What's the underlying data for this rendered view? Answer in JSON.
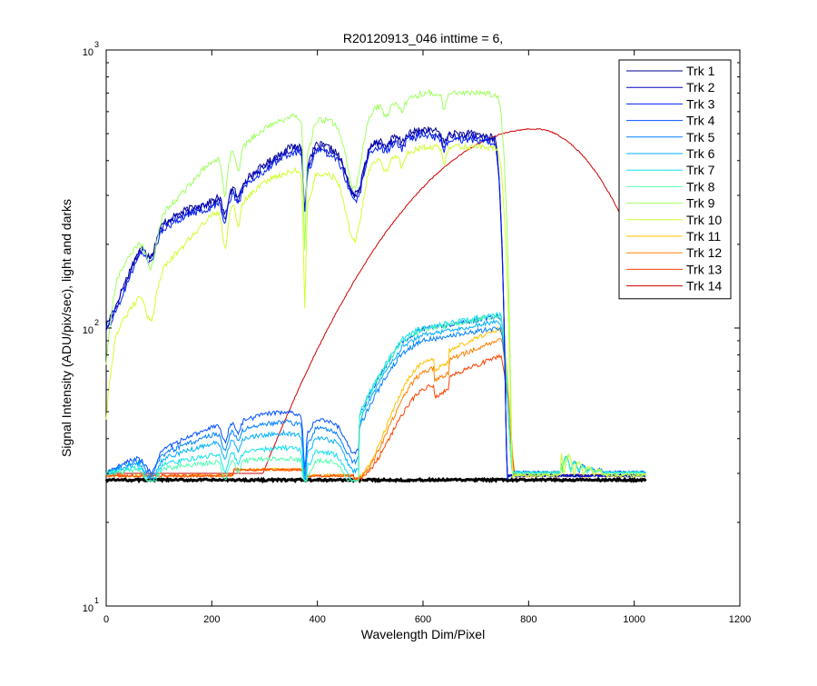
{
  "chart_data": {
    "type": "line",
    "title": "R20120913_046 inttime = 6,",
    "xlabel": "Wavelength Dim/Pixel",
    "ylabel": "Signal Intensity (ADU/pix/sec), light and darks",
    "xlim": [
      0,
      1200
    ],
    "ylim": [
      10,
      1000
    ],
    "yscale": "log",
    "grid": false,
    "legend_position": "top-right",
    "xticks": [
      0,
      200,
      400,
      600,
      800,
      1000,
      1200
    ],
    "xtick_labels": [
      "0",
      "200",
      "400",
      "600",
      "800",
      "1000",
      "1200"
    ],
    "yticks": [
      10,
      100,
      1000
    ],
    "ytick_labels": [
      {
        "base": "10",
        "exp": "1"
      },
      {
        "base": "10",
        "exp": "2"
      },
      {
        "base": "10",
        "exp": "3"
      }
    ],
    "series": [
      {
        "name": "Trk 1",
        "color": "#00008f",
        "shape": "blue",
        "params": {
          "scale": 1.02,
          "low": 90
        }
      },
      {
        "name": "Trk 2",
        "color": "#0000bf",
        "shape": "blue",
        "params": {
          "scale": 1.0,
          "low": 95
        }
      },
      {
        "name": "Trk 3",
        "color": "#0020ef",
        "shape": "blue",
        "params": {
          "scale": 0.97,
          "low": 100
        }
      },
      {
        "name": "Trk 4",
        "color": "#0050ff",
        "shape": "cyan",
        "params": {
          "hump": 1.0,
          "peak": 110
        }
      },
      {
        "name": "Trk 5",
        "color": "#0080ff",
        "shape": "cyan",
        "params": {
          "hump": 0.8,
          "peak": 100
        }
      },
      {
        "name": "Trk 6",
        "color": "#00b0ff",
        "shape": "cyan",
        "params": {
          "hump": 0.6,
          "peak": 105
        }
      },
      {
        "name": "Trk 7",
        "color": "#10e0ef",
        "shape": "cyan",
        "params": {
          "hump": 0.35,
          "peak": 112
        }
      },
      {
        "name": "Trk 8",
        "color": "#50ffaf",
        "shape": "cyan",
        "params": {
          "hump": 0.2,
          "peak": 110
        }
      },
      {
        "name": "Trk 9",
        "color": "#a0ff60",
        "shape": "green",
        "params": {
          "scale": 1.25
        }
      },
      {
        "name": "Trk 10",
        "color": "#d0ff30",
        "shape": "green",
        "params": {
          "scale": 0.8
        }
      },
      {
        "name": "Trk 11",
        "color": "#ffc000",
        "shape": "orange",
        "params": {
          "peak": 100
        }
      },
      {
        "name": "Trk 12",
        "color": "#ff8000",
        "shape": "orange",
        "params": {
          "peak": 92
        }
      },
      {
        "name": "Trk 13",
        "color": "#ff4000",
        "shape": "orange",
        "params": {
          "peak": 80
        }
      },
      {
        "name": "Trk 14",
        "color": "#cf0000",
        "shape": "bell",
        "params": {
          "peak": 520,
          "center": 812
        }
      }
    ]
  }
}
